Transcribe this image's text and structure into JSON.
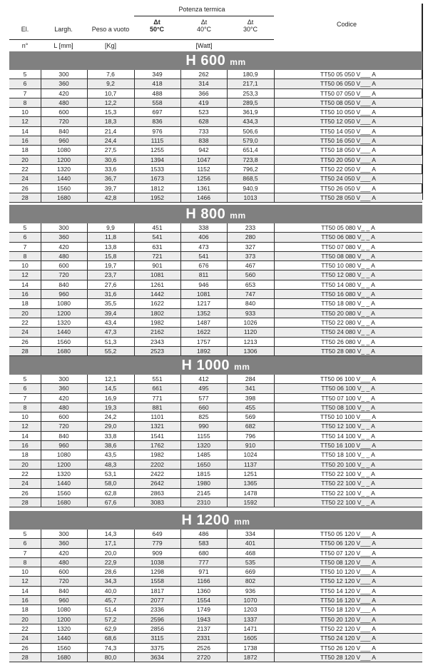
{
  "header": {
    "group_label": "Potenza termica",
    "columns": [
      {
        "label": "El.",
        "unit": "n°"
      },
      {
        "label": "Largh.",
        "unit": "L [mm]"
      },
      {
        "label": "Peso a vuoto",
        "unit": "[Kg]"
      },
      {
        "label": "Δt",
        "label2": "50°C"
      },
      {
        "label": "Δt",
        "label2": "40°C",
        "unit": "[Watt]"
      },
      {
        "label": "Δt",
        "label2": "30°C"
      },
      {
        "label": "Codice"
      }
    ]
  },
  "sections": [
    {
      "title": "H 600",
      "unit": "mm",
      "rows": [
        [
          "5",
          "300",
          "7,6",
          "349",
          "262",
          "180,9",
          "TT50 05 050 V___ A"
        ],
        [
          "6",
          "360",
          "9,2",
          "418",
          "314",
          "217,1",
          "TT50 06 050 V___ A"
        ],
        [
          "7",
          "420",
          "10,7",
          "488",
          "366",
          "253,3",
          "TT50 07 050 V___ A"
        ],
        [
          "8",
          "480",
          "12,2",
          "558",
          "419",
          "289,5",
          "TT50 08 050 V___ A"
        ],
        [
          "10",
          "600",
          "15,3",
          "697",
          "523",
          "361,9",
          "TT50 10 050 V___ A"
        ],
        [
          "12",
          "720",
          "18,3",
          "836",
          "628",
          "434,3",
          "TT50 12 050 V___ A"
        ],
        [
          "14",
          "840",
          "21,4",
          "976",
          "733",
          "506,6",
          "TT50 14 050 V___ A"
        ],
        [
          "16",
          "960",
          "24,4",
          "1115",
          "838",
          "579,0",
          "TT50 16 050 V___ A"
        ],
        [
          "18",
          "1080",
          "27,5",
          "1255",
          "942",
          "651,4",
          "TT50 18 050 V___ A"
        ],
        [
          "20",
          "1200",
          "30,6",
          "1394",
          "1047",
          "723,8",
          "TT50 20 050 V___ A"
        ],
        [
          "22",
          "1320",
          "33,6",
          "1533",
          "1152",
          "796,2",
          "TT50 22 050 V___ A"
        ],
        [
          "24",
          "1440",
          "36,7",
          "1673",
          "1256",
          "868,5",
          "TT50 24 050 V___ A"
        ],
        [
          "26",
          "1560",
          "39,7",
          "1812",
          "1361",
          "940,9",
          "TT50 26 050 V___ A"
        ],
        [
          "28",
          "1680",
          "42,8",
          "1952",
          "1466",
          "1013",
          "TT50 28 050 V___ A"
        ]
      ]
    },
    {
      "title": "H 800",
      "unit": "mm",
      "rows": [
        [
          "5",
          "300",
          "9,9",
          "451",
          "338",
          "233",
          "TT50 05 080 V_ _ A"
        ],
        [
          "6",
          "360",
          "11,8",
          "541",
          "406",
          "280",
          "TT50 06 080 V_ _ A"
        ],
        [
          "7",
          "420",
          "13,8",
          "631",
          "473",
          "327",
          "TT50 07 080 V_ _ A"
        ],
        [
          "8",
          "480",
          "15,8",
          "721",
          "541",
          "373",
          "TT50 08 080 V_ _ A"
        ],
        [
          "10",
          "600",
          "19,7",
          "901",
          "676",
          "467",
          "TT50 10 080 V_ _ A"
        ],
        [
          "12",
          "720",
          "23,7",
          "1081",
          "811",
          "560",
          "TT50 12 080 V_ _ A"
        ],
        [
          "14",
          "840",
          "27,6",
          "1261",
          "946",
          "653",
          "TT50 14 080 V_ _ A"
        ],
        [
          "16",
          "960",
          "31,6",
          "1442",
          "1081",
          "747",
          "TT50 16 080 V_ _ A"
        ],
        [
          "18",
          "1080",
          "35,5",
          "1622",
          "1217",
          "840",
          "TT50 18 080 V_ _ A"
        ],
        [
          "20",
          "1200",
          "39,4",
          "1802",
          "1352",
          "933",
          "TT50 20 080 V_ _ A"
        ],
        [
          "22",
          "1320",
          "43,4",
          "1982",
          "1487",
          "1026",
          "TT50 22 080 V_ _ A"
        ],
        [
          "24",
          "1440",
          "47,3",
          "2162",
          "1622",
          "1120",
          "TT50 24 080 V_ _ A"
        ],
        [
          "26",
          "1560",
          "51,3",
          "2343",
          "1757",
          "1213",
          "TT50 26 080 V_ _ A"
        ],
        [
          "28",
          "1680",
          "55,2",
          "2523",
          "1892",
          "1306",
          "TT50 28 080 V_ _ A"
        ]
      ]
    },
    {
      "title": "H 1000",
      "unit": "mm",
      "rows": [
        [
          "5",
          "300",
          "12,1",
          "551",
          "412",
          "284",
          "TT50 06 100  V___ A"
        ],
        [
          "6",
          "360",
          "14,5",
          "661",
          "495",
          "341",
          "TT50 06 100  V_ _ A"
        ],
        [
          "7",
          "420",
          "16,9",
          "771",
          "577",
          "398",
          "TT50 07 100  V_ _ A"
        ],
        [
          "8",
          "480",
          "19,3",
          "881",
          "660",
          "455",
          "TT50 08 100  V_ _ A"
        ],
        [
          "10",
          "600",
          "24,2",
          "1101",
          "825",
          "569",
          "TT50 10 100  V___ A"
        ],
        [
          "12",
          "720",
          "29,0",
          "1321",
          "990",
          "682",
          "TT50 12 100  V_ _ A"
        ],
        [
          "14",
          "840",
          "33,8",
          "1541",
          "1155",
          "796",
          "TT50 14 100  V_ _ A"
        ],
        [
          "16",
          "960",
          "38,6",
          "1762",
          "1320",
          "910",
          "TT50 16 100  V___ A"
        ],
        [
          "18",
          "1080",
          "43,5",
          "1982",
          "1485",
          "1024",
          "TT50 18 100  V_ _ A"
        ],
        [
          "20",
          "1200",
          "48,3",
          "2202",
          "1650",
          "1137",
          "TT50 20 100  V_ _ A"
        ],
        [
          "22",
          "1320",
          "53,1",
          "2422",
          "1815",
          "1251",
          "TT50 22 100  V_ _ A"
        ],
        [
          "24",
          "1440",
          "58,0",
          "2642",
          "1980",
          "1365",
          "TT50 22 100  V_ _ A"
        ],
        [
          "26",
          "1560",
          "62,8",
          "2863",
          "2145",
          "1478",
          "TT50 22 100  V_ _ A"
        ],
        [
          "28",
          "1680",
          "67,6",
          "3083",
          "2310",
          "1592",
          "TT50 22 100  V_ _ A"
        ]
      ]
    },
    {
      "title": "H 1200",
      "unit": "mm",
      "rows": [
        [
          "5",
          "300",
          "14,3",
          "649",
          "486",
          "334",
          "TT50 05 120  V___ A"
        ],
        [
          "6",
          "360",
          "17,1",
          "779",
          "583",
          "401",
          "TT50 06 120  V___ A"
        ],
        [
          "7",
          "420",
          "20,0",
          "909",
          "680",
          "468",
          "TT50 07 120  V___ A"
        ],
        [
          "8",
          "480",
          "22,9",
          "1038",
          "777",
          "535",
          "TT50 08 120  V___ A"
        ],
        [
          "10",
          "600",
          "28,6",
          "1298",
          "971",
          "669",
          "TT50 10 120  V___ A"
        ],
        [
          "12",
          "720",
          "34,3",
          "1558",
          "1166",
          "802",
          "TT50 12 120  V___ A"
        ],
        [
          "14",
          "840",
          "40,0",
          "1817",
          "1360",
          "936",
          "TT50 14 120  V___ A"
        ],
        [
          "16",
          "960",
          "45,7",
          "2077",
          "1554",
          "1070",
          "TT50 16 120  V___ A"
        ],
        [
          "18",
          "1080",
          "51,4",
          "2336",
          "1749",
          "1203",
          "TT50 18 120  V___ A"
        ],
        [
          "20",
          "1200",
          "57,2",
          "2596",
          "1943",
          "1337",
          "TT50 20 120  V___ A"
        ],
        [
          "22",
          "1320",
          "62,9",
          "2856",
          "2137",
          "1471",
          "TT50 22 120  V___ A"
        ],
        [
          "24",
          "1440",
          "68,6",
          "3115",
          "2331",
          "1605",
          "TT50 24 120  V___ A"
        ],
        [
          "26",
          "1560",
          "74,3",
          "3375",
          "2526",
          "1738",
          "TT50 26 120  V___ A"
        ],
        [
          "28",
          "1680",
          "80,0",
          "3634",
          "2720",
          "1872",
          "TT50 28 120  V___ A"
        ]
      ]
    }
  ]
}
